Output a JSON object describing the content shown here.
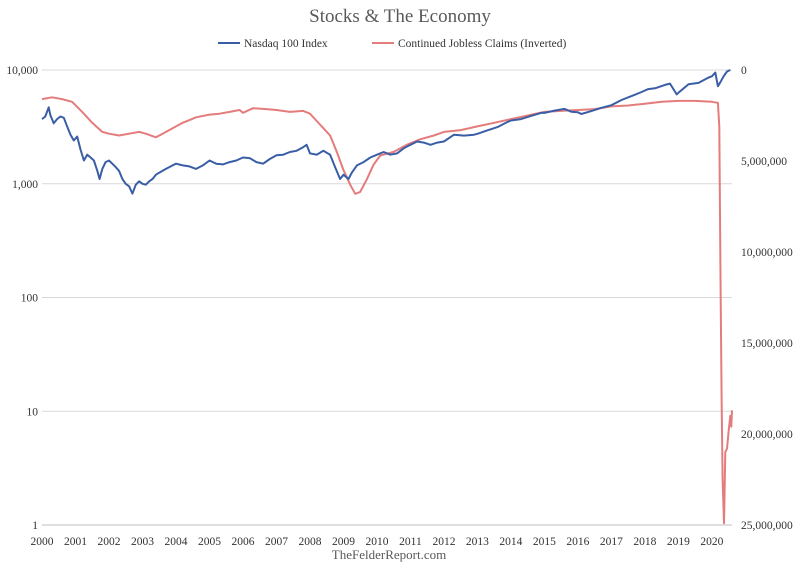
{
  "chart_data": {
    "type": "line",
    "title": "Stocks & The Economy",
    "source": "TheFelderReport.com",
    "x_tick_labels": [
      "2000",
      "2001",
      "2002",
      "2003",
      "2004",
      "2005",
      "2006",
      "2007",
      "2008",
      "2009",
      "2010",
      "2011",
      "2012",
      "2013",
      "2014",
      "2015",
      "2016",
      "2017",
      "2018",
      "2019",
      "2020"
    ],
    "x_range": [
      2000,
      2020.6
    ],
    "left_axis": {
      "scale": "log",
      "range": [
        1,
        10000
      ],
      "ticks": [
        1,
        10,
        100,
        1000,
        10000
      ],
      "tick_labels": [
        "1",
        "10",
        "100",
        "1,000",
        "10,000"
      ]
    },
    "right_axis": {
      "scale": "linear",
      "inverted": true,
      "range": [
        0,
        25000000
      ],
      "ticks": [
        0,
        5000000,
        10000000,
        15000000,
        20000000,
        25000000
      ],
      "tick_labels": [
        "0",
        "5,000,000",
        "10,000,000",
        "15,000,000",
        "20,000,000",
        "25,000,000"
      ]
    },
    "gridlines": "horizontal",
    "legend_position": "top",
    "series": [
      {
        "name": "Nasdaq 100 Index",
        "axis": "left",
        "color": "#3a5ea6",
        "points": [
          [
            2000.0,
            3700
          ],
          [
            2000.1,
            3900
          ],
          [
            2000.2,
            4700
          ],
          [
            2000.25,
            4000
          ],
          [
            2000.35,
            3400
          ],
          [
            2000.45,
            3700
          ],
          [
            2000.55,
            3900
          ],
          [
            2000.65,
            3800
          ],
          [
            2000.75,
            3200
          ],
          [
            2000.85,
            2700
          ],
          [
            2000.95,
            2400
          ],
          [
            2001.05,
            2600
          ],
          [
            2001.15,
            2000
          ],
          [
            2001.25,
            1600
          ],
          [
            2001.35,
            1800
          ],
          [
            2001.45,
            1700
          ],
          [
            2001.55,
            1600
          ],
          [
            2001.65,
            1300
          ],
          [
            2001.72,
            1100
          ],
          [
            2001.8,
            1350
          ],
          [
            2001.9,
            1550
          ],
          [
            2002.0,
            1600
          ],
          [
            2002.1,
            1500
          ],
          [
            2002.2,
            1400
          ],
          [
            2002.3,
            1300
          ],
          [
            2002.4,
            1100
          ],
          [
            2002.5,
            1000
          ],
          [
            2002.6,
            950
          ],
          [
            2002.7,
            820
          ],
          [
            2002.8,
            980
          ],
          [
            2002.9,
            1050
          ],
          [
            2003.0,
            1000
          ],
          [
            2003.1,
            980
          ],
          [
            2003.2,
            1050
          ],
          [
            2003.3,
            1100
          ],
          [
            2003.4,
            1200
          ],
          [
            2003.5,
            1250
          ],
          [
            2003.6,
            1300
          ],
          [
            2003.7,
            1350
          ],
          [
            2003.8,
            1400
          ],
          [
            2003.9,
            1450
          ],
          [
            2004.0,
            1500
          ],
          [
            2004.2,
            1450
          ],
          [
            2004.4,
            1420
          ],
          [
            2004.6,
            1350
          ],
          [
            2004.8,
            1450
          ],
          [
            2005.0,
            1600
          ],
          [
            2005.2,
            1500
          ],
          [
            2005.4,
            1480
          ],
          [
            2005.6,
            1550
          ],
          [
            2005.8,
            1600
          ],
          [
            2006.0,
            1700
          ],
          [
            2006.2,
            1680
          ],
          [
            2006.4,
            1550
          ],
          [
            2006.6,
            1500
          ],
          [
            2006.8,
            1650
          ],
          [
            2007.0,
            1780
          ],
          [
            2007.2,
            1800
          ],
          [
            2007.4,
            1900
          ],
          [
            2007.6,
            1950
          ],
          [
            2007.8,
            2100
          ],
          [
            2007.9,
            2200
          ],
          [
            2008.0,
            1850
          ],
          [
            2008.2,
            1800
          ],
          [
            2008.4,
            1950
          ],
          [
            2008.6,
            1800
          ],
          [
            2008.75,
            1400
          ],
          [
            2008.9,
            1100
          ],
          [
            2009.0,
            1200
          ],
          [
            2009.15,
            1100
          ],
          [
            2009.25,
            1250
          ],
          [
            2009.4,
            1450
          ],
          [
            2009.6,
            1550
          ],
          [
            2009.8,
            1700
          ],
          [
            2010.0,
            1800
          ],
          [
            2010.2,
            1900
          ],
          [
            2010.4,
            1800
          ],
          [
            2010.6,
            1850
          ],
          [
            2010.8,
            2050
          ],
          [
            2011.0,
            2200
          ],
          [
            2011.2,
            2350
          ],
          [
            2011.4,
            2300
          ],
          [
            2011.6,
            2200
          ],
          [
            2011.8,
            2300
          ],
          [
            2012.0,
            2350
          ],
          [
            2012.3,
            2700
          ],
          [
            2012.6,
            2650
          ],
          [
            2012.9,
            2700
          ],
          [
            2013.0,
            2750
          ],
          [
            2013.3,
            2950
          ],
          [
            2013.6,
            3150
          ],
          [
            2013.9,
            3500
          ],
          [
            2014.0,
            3600
          ],
          [
            2014.3,
            3700
          ],
          [
            2014.6,
            3950
          ],
          [
            2014.9,
            4200
          ],
          [
            2015.0,
            4200
          ],
          [
            2015.3,
            4400
          ],
          [
            2015.6,
            4550
          ],
          [
            2015.8,
            4300
          ],
          [
            2016.0,
            4250
          ],
          [
            2016.1,
            4100
          ],
          [
            2016.4,
            4350
          ],
          [
            2016.7,
            4650
          ],
          [
            2017.0,
            4900
          ],
          [
            2017.3,
            5450
          ],
          [
            2017.6,
            5900
          ],
          [
            2017.9,
            6400
          ],
          [
            2018.0,
            6600
          ],
          [
            2018.1,
            6800
          ],
          [
            2018.3,
            6900
          ],
          [
            2018.6,
            7400
          ],
          [
            2018.75,
            7600
          ],
          [
            2018.95,
            6100
          ],
          [
            2019.0,
            6300
          ],
          [
            2019.3,
            7500
          ],
          [
            2019.6,
            7700
          ],
          [
            2019.9,
            8600
          ],
          [
            2020.0,
            8800
          ],
          [
            2020.1,
            9500
          ],
          [
            2020.18,
            7200
          ],
          [
            2020.25,
            7800
          ],
          [
            2020.35,
            8800
          ],
          [
            2020.45,
            9700
          ],
          [
            2020.55,
            10000
          ]
        ]
      },
      {
        "name": "Continued Jobless Claims (Inverted)",
        "axis": "right",
        "color": "#e57c7c",
        "points": [
          [
            2000.0,
            1600000
          ],
          [
            2000.3,
            1500000
          ],
          [
            2000.6,
            1600000
          ],
          [
            2000.9,
            1750000
          ],
          [
            2001.2,
            2300000
          ],
          [
            2001.5,
            2900000
          ],
          [
            2001.8,
            3400000
          ],
          [
            2002.0,
            3500000
          ],
          [
            2002.3,
            3600000
          ],
          [
            2002.6,
            3500000
          ],
          [
            2002.9,
            3400000
          ],
          [
            2003.1,
            3500000
          ],
          [
            2003.4,
            3700000
          ],
          [
            2003.6,
            3500000
          ],
          [
            2003.9,
            3200000
          ],
          [
            2004.2,
            2900000
          ],
          [
            2004.6,
            2600000
          ],
          [
            2005.0,
            2450000
          ],
          [
            2005.3,
            2400000
          ],
          [
            2005.6,
            2300000
          ],
          [
            2005.9,
            2200000
          ],
          [
            2006.0,
            2350000
          ],
          [
            2006.3,
            2100000
          ],
          [
            2006.7,
            2150000
          ],
          [
            2007.0,
            2200000
          ],
          [
            2007.4,
            2300000
          ],
          [
            2007.8,
            2250000
          ],
          [
            2008.0,
            2400000
          ],
          [
            2008.2,
            2800000
          ],
          [
            2008.4,
            3200000
          ],
          [
            2008.6,
            3600000
          ],
          [
            2008.8,
            4500000
          ],
          [
            2009.0,
            5500000
          ],
          [
            2009.2,
            6300000
          ],
          [
            2009.35,
            6800000
          ],
          [
            2009.5,
            6700000
          ],
          [
            2009.7,
            6000000
          ],
          [
            2009.9,
            5200000
          ],
          [
            2010.1,
            4700000
          ],
          [
            2010.5,
            4500000
          ],
          [
            2010.9,
            4100000
          ],
          [
            2011.3,
            3800000
          ],
          [
            2011.7,
            3600000
          ],
          [
            2012.0,
            3400000
          ],
          [
            2012.5,
            3300000
          ],
          [
            2013.0,
            3100000
          ],
          [
            2013.5,
            2900000
          ],
          [
            2014.0,
            2700000
          ],
          [
            2014.5,
            2500000
          ],
          [
            2015.0,
            2300000
          ],
          [
            2015.5,
            2250000
          ],
          [
            2016.0,
            2200000
          ],
          [
            2016.5,
            2150000
          ],
          [
            2017.0,
            2000000
          ],
          [
            2017.5,
            1950000
          ],
          [
            2018.0,
            1850000
          ],
          [
            2018.5,
            1750000
          ],
          [
            2019.0,
            1700000
          ],
          [
            2019.5,
            1700000
          ],
          [
            2020.0,
            1750000
          ],
          [
            2020.18,
            1800000
          ],
          [
            2020.22,
            3100000
          ],
          [
            2020.26,
            12000000
          ],
          [
            2020.29,
            18000000
          ],
          [
            2020.32,
            22500000
          ],
          [
            2020.36,
            24900000
          ],
          [
            2020.4,
            21000000
          ],
          [
            2020.45,
            20800000
          ],
          [
            2020.5,
            19800000
          ],
          [
            2020.55,
            19000000
          ],
          [
            2020.58,
            19600000
          ],
          [
            2020.6,
            18700000
          ]
        ]
      }
    ]
  }
}
